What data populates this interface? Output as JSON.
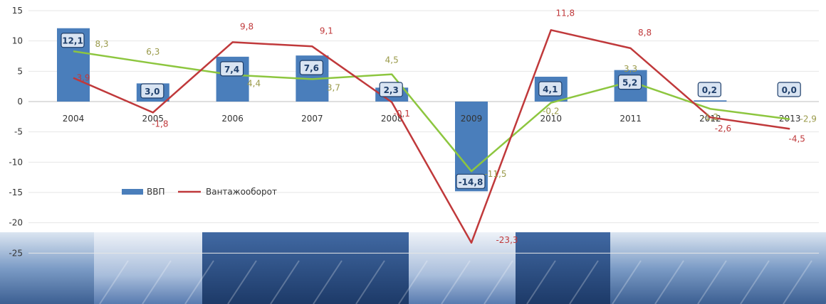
{
  "chart_data": {
    "type": "bar",
    "categories": [
      "2004",
      "2005",
      "2006",
      "2007",
      "2008",
      "2009",
      "2010",
      "2011",
      "2012",
      "2013"
    ],
    "ylim": [
      -28,
      15
    ],
    "yticks": [
      15,
      10,
      5,
      0,
      -5,
      -10,
      -15,
      -20,
      -25
    ],
    "ytick_labels": [
      "15",
      "10",
      "5",
      "0",
      "-5",
      "-10",
      "-15",
      "-20",
      "-25"
    ],
    "series": [
      {
        "name": "ВВП",
        "type": "bar",
        "values": [
          12.1,
          3.0,
          7.4,
          7.6,
          2.3,
          -14.8,
          4.1,
          5.2,
          0.2,
          0.0
        ],
        "labels": [
          "12,1",
          "3,0",
          "7,4",
          "7,6",
          "2,3",
          "-14,8",
          "4,1",
          "5,2",
          "0,2",
          "0,0"
        ],
        "color": "#4a7ebb"
      },
      {
        "name": "Вантажооборот",
        "type": "line",
        "values": [
          3.9,
          -1.8,
          9.8,
          9.1,
          -0.1,
          -23.3,
          11.8,
          8.8,
          -2.6,
          -4.5
        ],
        "labels": [
          "3,9",
          "-1,8",
          "9,8",
          "9,1",
          "-0,1",
          "-23,3",
          "11,8",
          "8,8",
          "-2,6",
          "-4,5"
        ],
        "color": "#c0393b"
      },
      {
        "type": "line",
        "values": [
          8.3,
          6.3,
          4.4,
          3.7,
          4.5,
          -11.5,
          -0.2,
          3.3,
          -1.2,
          -2.9
        ],
        "labels": [
          "8,3",
          "6,3",
          "4,4",
          "3,7",
          "4,5",
          "-11,5",
          "-0,2",
          "3,3",
          "-1,2",
          "-2,9"
        ],
        "color": "#8dc63f",
        "label_color": "#9a9a4a"
      }
    ],
    "legend": {
      "entries": [
        "ВВП",
        "Вантажооборот"
      ],
      "placement": "inside-left"
    },
    "grid": true
  }
}
